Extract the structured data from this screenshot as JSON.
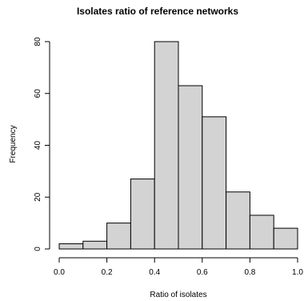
{
  "chart_data": {
    "type": "bar",
    "title": "Isolates ratio of reference networks",
    "xlabel": "Ratio of isolates",
    "ylabel": "Frequency",
    "bin_edges": [
      0.0,
      0.1,
      0.2,
      0.3,
      0.4,
      0.5,
      0.6,
      0.7,
      0.8,
      0.9,
      1.0
    ],
    "values": [
      2,
      3,
      10,
      27,
      80,
      63,
      51,
      22,
      13,
      8
    ],
    "xlim": [
      0.0,
      1.0
    ],
    "ylim": [
      0,
      80
    ],
    "x_ticks": [
      0.0,
      0.2,
      0.4,
      0.6,
      0.8,
      1.0
    ],
    "x_tick_labels": [
      "0.0",
      "0.2",
      "0.4",
      "0.6",
      "0.8",
      "1.0"
    ],
    "y_ticks": [
      0,
      20,
      40,
      60,
      80
    ],
    "y_tick_labels": [
      "0",
      "20",
      "40",
      "60",
      "80"
    ],
    "bar_fill": "#d3d3d3",
    "grid": false
  }
}
